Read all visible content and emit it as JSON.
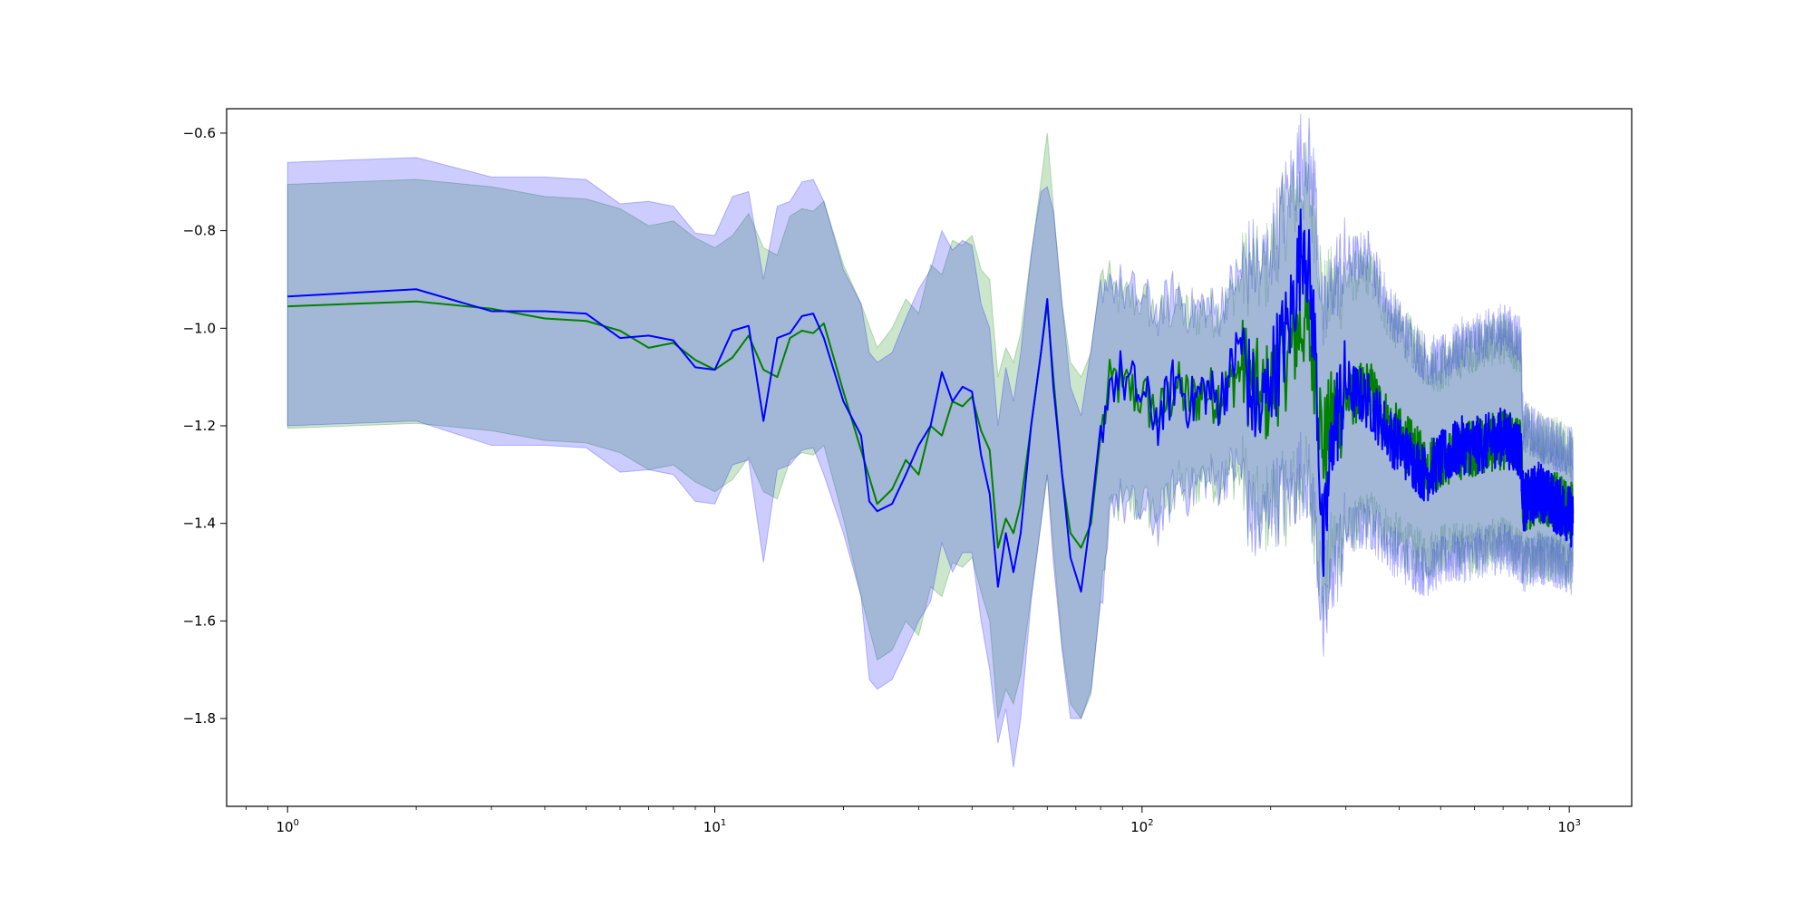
{
  "chart_data": {
    "type": "line",
    "title": "",
    "xlabel": "",
    "ylabel": "",
    "xscale": "log",
    "xlim": [
      0.72,
      1400
    ],
    "ylim": [
      -1.98,
      -0.55
    ],
    "grid": false,
    "legend": "none",
    "x_ticks": [
      1,
      10,
      100,
      1000
    ],
    "x_tick_labels": [
      {
        "base": "10",
        "exp": "0"
      },
      {
        "base": "10",
        "exp": "1"
      },
      {
        "base": "10",
        "exp": "2"
      },
      {
        "base": "10",
        "exp": "3"
      }
    ],
    "y_ticks": [
      -0.6,
      -0.8,
      -1.0,
      -1.2,
      -1.4,
      -1.6,
      -1.8
    ],
    "y_tick_labels": [
      "−0.6",
      "−0.8",
      "−1.0",
      "−1.2",
      "−1.4",
      "−1.6",
      "−1.8"
    ],
    "series": [
      {
        "color": "#008000",
        "band_color": "#008000",
        "band_opacity": 0.2,
        "points": [
          [
            1,
            -0.955,
            -1.205,
            -0.705
          ],
          [
            2,
            -0.945,
            -1.195,
            -0.695
          ],
          [
            3,
            -0.96,
            -1.21,
            -0.71
          ],
          [
            4,
            -0.98,
            -1.23,
            -0.73
          ],
          [
            5,
            -0.985,
            -1.235,
            -0.735
          ],
          [
            6,
            -1.005,
            -1.255,
            -0.755
          ],
          [
            7,
            -1.04,
            -1.29,
            -0.79
          ],
          [
            8,
            -1.03,
            -1.28,
            -0.78
          ],
          [
            9,
            -1.065,
            -1.315,
            -0.815
          ],
          [
            10,
            -1.085,
            -1.335,
            -0.835
          ],
          [
            11,
            -1.06,
            -1.31,
            -0.81
          ],
          [
            12,
            -1.015,
            -1.265,
            -0.765
          ],
          [
            13,
            -1.085,
            -1.335,
            -0.835
          ],
          [
            14,
            -1.1,
            -1.35,
            -0.85
          ],
          [
            15,
            -1.02,
            -1.27,
            -0.77
          ],
          [
            16,
            -1.005,
            -1.255,
            -0.755
          ],
          [
            17,
            -1.01,
            -1.26,
            -0.76
          ],
          [
            18,
            -0.99,
            -1.24,
            -0.74
          ],
          [
            20,
            -1.13,
            -1.39,
            -0.87
          ],
          [
            22,
            -1.25,
            -1.55,
            -0.95
          ],
          [
            24,
            -1.36,
            -1.68,
            -1.04
          ],
          [
            26,
            -1.33,
            -1.66,
            -1.0
          ],
          [
            28,
            -1.27,
            -1.6,
            -0.94
          ],
          [
            30,
            -1.3,
            -1.63,
            -0.97
          ],
          [
            32,
            -1.2,
            -1.53,
            -0.87
          ],
          [
            34,
            -1.22,
            -1.55,
            -0.89
          ],
          [
            36,
            -1.15,
            -1.48,
            -0.82
          ],
          [
            38,
            -1.16,
            -1.49,
            -0.83
          ],
          [
            40,
            -1.14,
            -1.47,
            -0.81
          ],
          [
            42,
            -1.21,
            -1.54,
            -0.88
          ],
          [
            44,
            -1.25,
            -1.6,
            -0.9
          ],
          [
            46,
            -1.45,
            -1.8,
            -1.1
          ],
          [
            48,
            -1.39,
            -1.74,
            -1.04
          ],
          [
            50,
            -1.42,
            -1.77,
            -1.07
          ],
          [
            52,
            -1.36,
            -1.71,
            -1.01
          ],
          [
            55,
            -1.2,
            -1.55,
            -0.85
          ],
          [
            58,
            -1.05,
            -1.4,
            -0.7
          ],
          [
            60,
            -0.95,
            -1.3,
            -0.6
          ],
          [
            62,
            -1.1,
            -1.45,
            -0.75
          ],
          [
            65,
            -1.3,
            -1.65,
            -0.95
          ],
          [
            68,
            -1.42,
            -1.77,
            -1.07
          ],
          [
            72,
            -1.45,
            -1.8,
            -1.1
          ],
          [
            76,
            -1.4,
            -1.75,
            -1.05
          ],
          [
            80,
            -1.22,
            -1.55,
            -0.89
          ],
          [
            85,
            -1.1,
            -1.36,
            -0.92
          ],
          [
            90,
            -1.12,
            -1.36,
            -0.94
          ],
          [
            100,
            -1.14,
            -1.36,
            -0.94
          ],
          [
            110,
            -1.18,
            -1.38,
            -0.98
          ],
          [
            120,
            -1.12,
            -1.32,
            -0.95
          ],
          [
            130,
            -1.15,
            -1.33,
            -0.98
          ],
          [
            140,
            -1.13,
            -1.3,
            -0.96
          ],
          [
            150,
            -1.14,
            -1.31,
            -0.97
          ],
          [
            160,
            -1.12,
            -1.3,
            -0.94
          ],
          [
            170,
            -1.08,
            -1.3,
            -0.9
          ],
          [
            180,
            -1.1,
            -1.35,
            -0.87
          ],
          [
            190,
            -1.15,
            -1.4,
            -0.9
          ],
          [
            200,
            -1.12,
            -1.35,
            -0.85
          ],
          [
            220,
            -1.05,
            -1.35,
            -0.75
          ],
          [
            240,
            -0.98,
            -1.3,
            -0.7
          ],
          [
            255,
            -1.08,
            -1.4,
            -0.78
          ],
          [
            265,
            -1.25,
            -1.55,
            -0.95
          ],
          [
            280,
            -1.18,
            -1.45,
            -0.92
          ],
          [
            300,
            -1.15,
            -1.42,
            -0.9
          ],
          [
            340,
            -1.12,
            -1.38,
            -0.88
          ],
          [
            380,
            -1.2,
            -1.42,
            -0.98
          ],
          [
            420,
            -1.24,
            -1.45,
            -1.02
          ],
          [
            460,
            -1.28,
            -1.47,
            -1.07
          ],
          [
            500,
            -1.27,
            -1.45,
            -1.08
          ],
          [
            560,
            -1.25,
            -1.45,
            -1.05
          ],
          [
            620,
            -1.24,
            -1.45,
            -1.03
          ],
          [
            700,
            -1.23,
            -1.44,
            -1.02
          ],
          [
            770,
            -1.24,
            -1.46,
            -1.05
          ],
          [
            780,
            -1.36,
            -1.48,
            -1.2
          ],
          [
            850,
            -1.34,
            -1.46,
            -1.22
          ],
          [
            920,
            -1.35,
            -1.47,
            -1.23
          ],
          [
            1000,
            -1.37,
            -1.48,
            -1.25
          ],
          [
            1020,
            -1.38,
            -1.49,
            -1.26
          ]
        ]
      },
      {
        "color": "#0000ff",
        "band_color": "#0000ff",
        "band_opacity": 0.2,
        "points": [
          [
            1,
            -0.935,
            -1.2,
            -0.66
          ],
          [
            2,
            -0.92,
            -1.19,
            -0.65
          ],
          [
            3,
            -0.965,
            -1.24,
            -0.69
          ],
          [
            4,
            -0.965,
            -1.24,
            -0.69
          ],
          [
            5,
            -0.97,
            -1.245,
            -0.695
          ],
          [
            6,
            -1.02,
            -1.295,
            -0.745
          ],
          [
            7,
            -1.015,
            -1.29,
            -0.74
          ],
          [
            8,
            -1.025,
            -1.3,
            -0.75
          ],
          [
            9,
            -1.08,
            -1.355,
            -0.805
          ],
          [
            10,
            -1.085,
            -1.36,
            -0.81
          ],
          [
            11,
            -1.005,
            -1.28,
            -0.73
          ],
          [
            12,
            -0.995,
            -1.27,
            -0.72
          ],
          [
            13,
            -1.19,
            -1.48,
            -0.9
          ],
          [
            14,
            -1.02,
            -1.29,
            -0.75
          ],
          [
            15,
            -1.01,
            -1.28,
            -0.74
          ],
          [
            16,
            -0.975,
            -1.25,
            -0.7
          ],
          [
            17,
            -0.97,
            -1.245,
            -0.695
          ],
          [
            18,
            -1.02,
            -1.3,
            -0.74
          ],
          [
            20,
            -1.15,
            -1.42,
            -0.88
          ],
          [
            22,
            -1.22,
            -1.55,
            -0.95
          ],
          [
            23,
            -1.355,
            -1.72,
            -1.05
          ],
          [
            24,
            -1.375,
            -1.74,
            -1.07
          ],
          [
            26,
            -1.36,
            -1.72,
            -1.05
          ],
          [
            28,
            -1.3,
            -1.66,
            -0.98
          ],
          [
            30,
            -1.24,
            -1.6,
            -0.92
          ],
          [
            32,
            -1.2,
            -1.56,
            -0.88
          ],
          [
            34,
            -1.09,
            -1.44,
            -0.8
          ],
          [
            36,
            -1.15,
            -1.5,
            -0.84
          ],
          [
            38,
            -1.12,
            -1.46,
            -0.82
          ],
          [
            40,
            -1.13,
            -1.46,
            -0.83
          ],
          [
            42,
            -1.26,
            -1.6,
            -0.95
          ],
          [
            44,
            -1.34,
            -1.7,
            -1.0
          ],
          [
            46,
            -1.53,
            -1.85,
            -1.2
          ],
          [
            48,
            -1.42,
            -1.78,
            -1.08
          ],
          [
            50,
            -1.5,
            -1.9,
            -1.15
          ],
          [
            52,
            -1.42,
            -1.8,
            -1.05
          ],
          [
            55,
            -1.2,
            -1.56,
            -0.85
          ],
          [
            58,
            -1.05,
            -1.4,
            -0.72
          ],
          [
            60,
            -0.94,
            -1.3,
            -0.71
          ],
          [
            62,
            -1.12,
            -1.48,
            -0.76
          ],
          [
            65,
            -1.3,
            -1.66,
            -0.95
          ],
          [
            68,
            -1.47,
            -1.8,
            -1.12
          ],
          [
            72,
            -1.54,
            -1.8,
            -1.18
          ],
          [
            76,
            -1.38,
            -1.74,
            -1.04
          ],
          [
            80,
            -1.2,
            -1.56,
            -0.9
          ],
          [
            85,
            -1.1,
            -1.34,
            -0.9
          ],
          [
            90,
            -1.1,
            -1.36,
            -0.92
          ],
          [
            100,
            -1.14,
            -1.38,
            -0.94
          ],
          [
            110,
            -1.19,
            -1.4,
            -0.97
          ],
          [
            120,
            -1.1,
            -1.32,
            -0.92
          ],
          [
            130,
            -1.16,
            -1.34,
            -0.97
          ],
          [
            140,
            -1.12,
            -1.3,
            -0.95
          ],
          [
            150,
            -1.15,
            -1.32,
            -0.97
          ],
          [
            160,
            -1.1,
            -1.29,
            -0.92
          ],
          [
            170,
            -1.02,
            -1.28,
            -0.88
          ],
          [
            180,
            -1.14,
            -1.4,
            -0.86
          ],
          [
            190,
            -1.18,
            -1.42,
            -0.88
          ],
          [
            200,
            -1.1,
            -1.35,
            -0.84
          ],
          [
            220,
            -1.0,
            -1.35,
            -0.72
          ],
          [
            240,
            -0.8,
            -1.28,
            -0.62
          ],
          [
            255,
            -1.05,
            -1.4,
            -0.72
          ],
          [
            265,
            -1.48,
            -1.64,
            -1.0
          ],
          [
            280,
            -1.2,
            -1.5,
            -0.9
          ],
          [
            300,
            -1.12,
            -1.42,
            -0.86
          ],
          [
            340,
            -1.15,
            -1.4,
            -0.85
          ],
          [
            380,
            -1.22,
            -1.45,
            -0.96
          ],
          [
            420,
            -1.26,
            -1.48,
            -1.02
          ],
          [
            460,
            -1.3,
            -1.5,
            -1.06
          ],
          [
            500,
            -1.27,
            -1.48,
            -1.07
          ],
          [
            560,
            -1.24,
            -1.47,
            -1.03
          ],
          [
            620,
            -1.24,
            -1.46,
            -1.02
          ],
          [
            700,
            -1.22,
            -1.45,
            -1.0
          ],
          [
            770,
            -1.25,
            -1.47,
            -1.02
          ],
          [
            780,
            -1.36,
            -1.49,
            -1.2
          ],
          [
            850,
            -1.33,
            -1.47,
            -1.22
          ],
          [
            920,
            -1.36,
            -1.48,
            -1.24
          ],
          [
            1000,
            -1.38,
            -1.49,
            -1.25
          ],
          [
            1020,
            -1.4,
            -1.5,
            -1.27
          ]
        ]
      }
    ]
  }
}
